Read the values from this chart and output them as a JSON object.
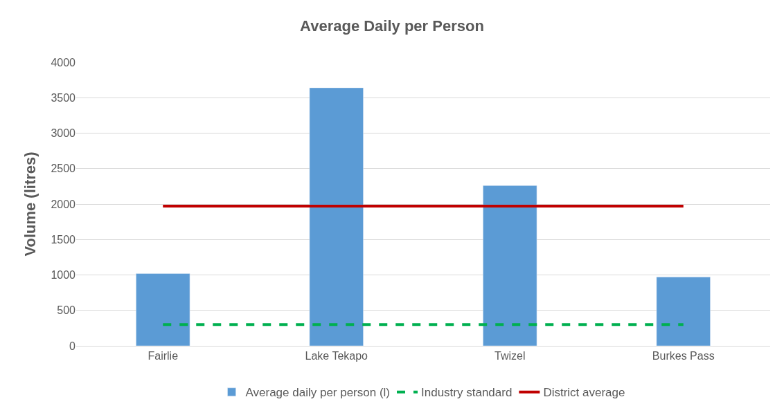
{
  "chart_data": {
    "type": "bar",
    "title": "Average Daily per Person",
    "ylabel": "Volume (litres)",
    "categories": [
      "Fairlie",
      "Lake Tekapo",
      "Twizel",
      "Burkes Pass"
    ],
    "series": [
      {
        "name": "Average daily per person (l)",
        "color": "#5b9bd5",
        "values": [
          1020,
          3640,
          2260,
          970
        ]
      },
      {
        "name": "Industry standard",
        "type": "line",
        "line_style": "dashed",
        "color": "#00b050",
        "values": [
          300,
          300,
          300,
          300
        ]
      },
      {
        "name": "District average",
        "type": "line",
        "line_style": "solid",
        "color": "#c00000",
        "values": [
          1970,
          1970,
          1970,
          1970
        ]
      }
    ],
    "ylim": [
      0,
      4000
    ],
    "yticks": [
      0,
      500,
      1000,
      1500,
      2000,
      2500,
      3000,
      3500,
      4000
    ],
    "grid": "y",
    "legend": "bottom"
  }
}
